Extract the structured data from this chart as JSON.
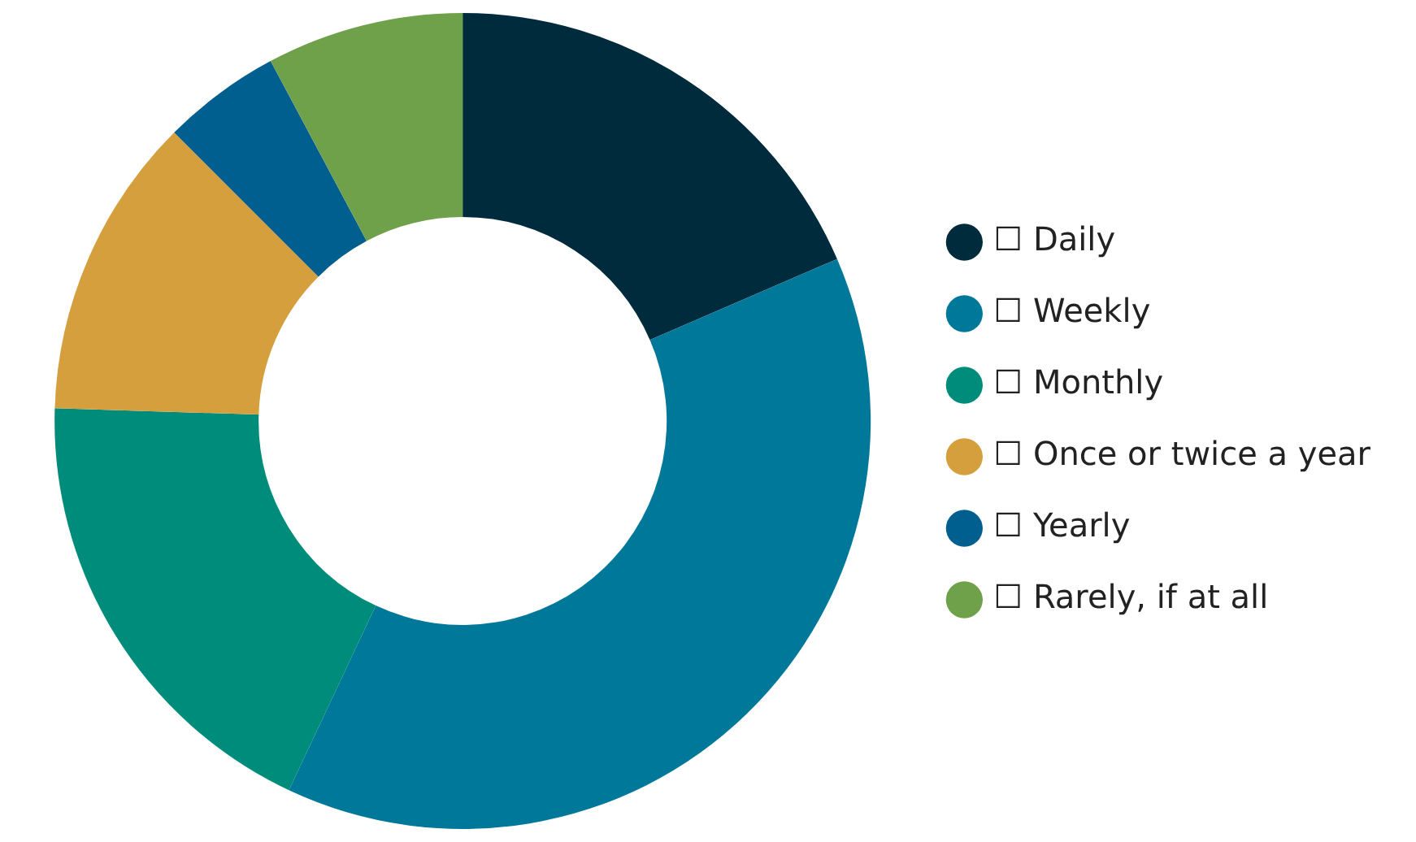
{
  "chart_data": {
    "type": "donut",
    "categories": [
      "☐ Daily",
      "☐ Weekly",
      "☐ Monthly",
      "☐ Once or twice a year",
      "☐ Yearly",
      "☐ Rarely, if at all"
    ],
    "values": [
      18.5,
      38.5,
      18.5,
      12,
      4.7,
      7.8
    ],
    "colors": [
      "#002b3d",
      "#00789a",
      "#008c7a",
      "#d59f3e",
      "#005f8f",
      "#6fa04a"
    ],
    "legend": "right"
  }
}
